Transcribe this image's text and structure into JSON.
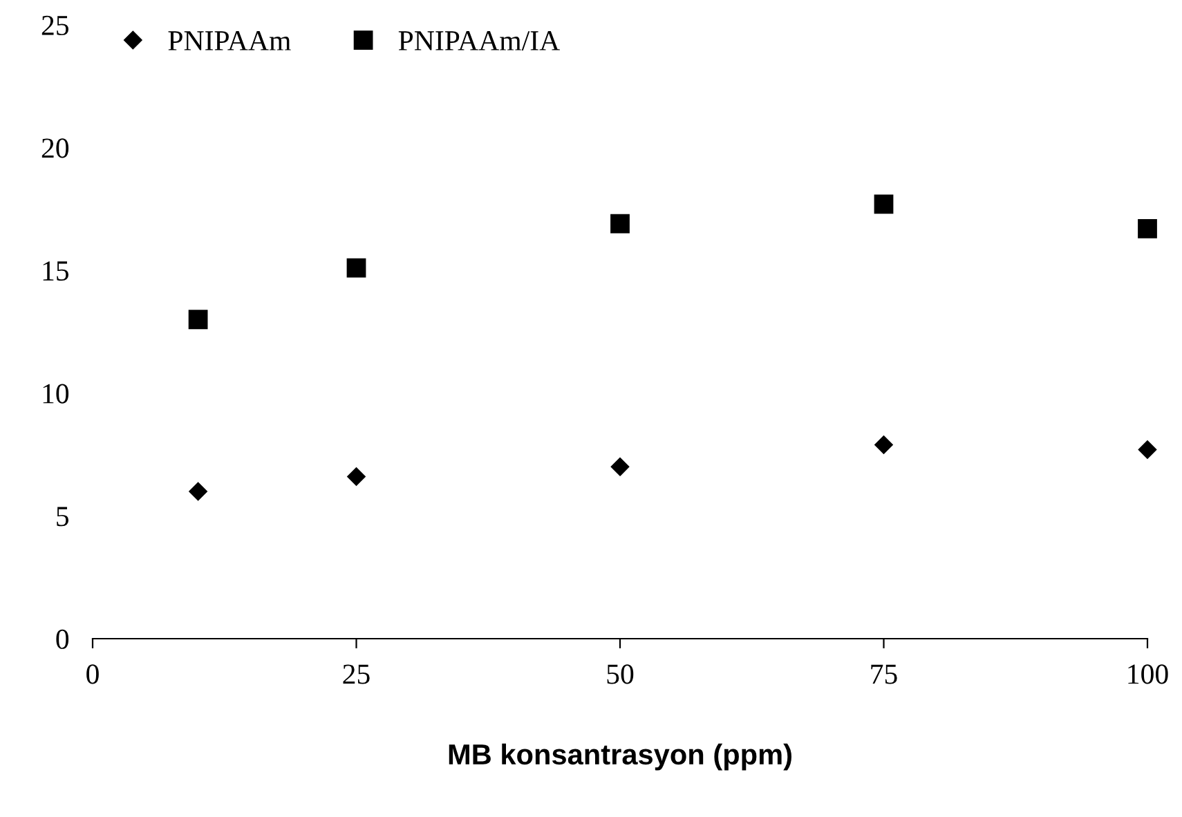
{
  "chart_data": {
    "type": "scatter",
    "xlabel": "MB konsantrasyon (ppm)",
    "x": [
      10,
      25,
      50,
      75,
      100
    ],
    "series": [
      {
        "name": "PNIPAAm",
        "color": "#000000",
        "marker": "diamond",
        "values": [
          6.0,
          6.6,
          7.0,
          7.9,
          7.7
        ]
      },
      {
        "name": "PNIPAAm/IA",
        "color": "#000000",
        "marker": "square",
        "values": [
          13.0,
          15.1,
          16.9,
          17.7,
          16.7
        ]
      }
    ],
    "xlim": [
      0,
      100
    ],
    "xticks": [
      0,
      25,
      50,
      75,
      100
    ],
    "ylim": [
      0,
      25
    ],
    "yticks": [
      0,
      5,
      10,
      15,
      20,
      25
    ],
    "grid": false,
    "legend": "top left"
  }
}
